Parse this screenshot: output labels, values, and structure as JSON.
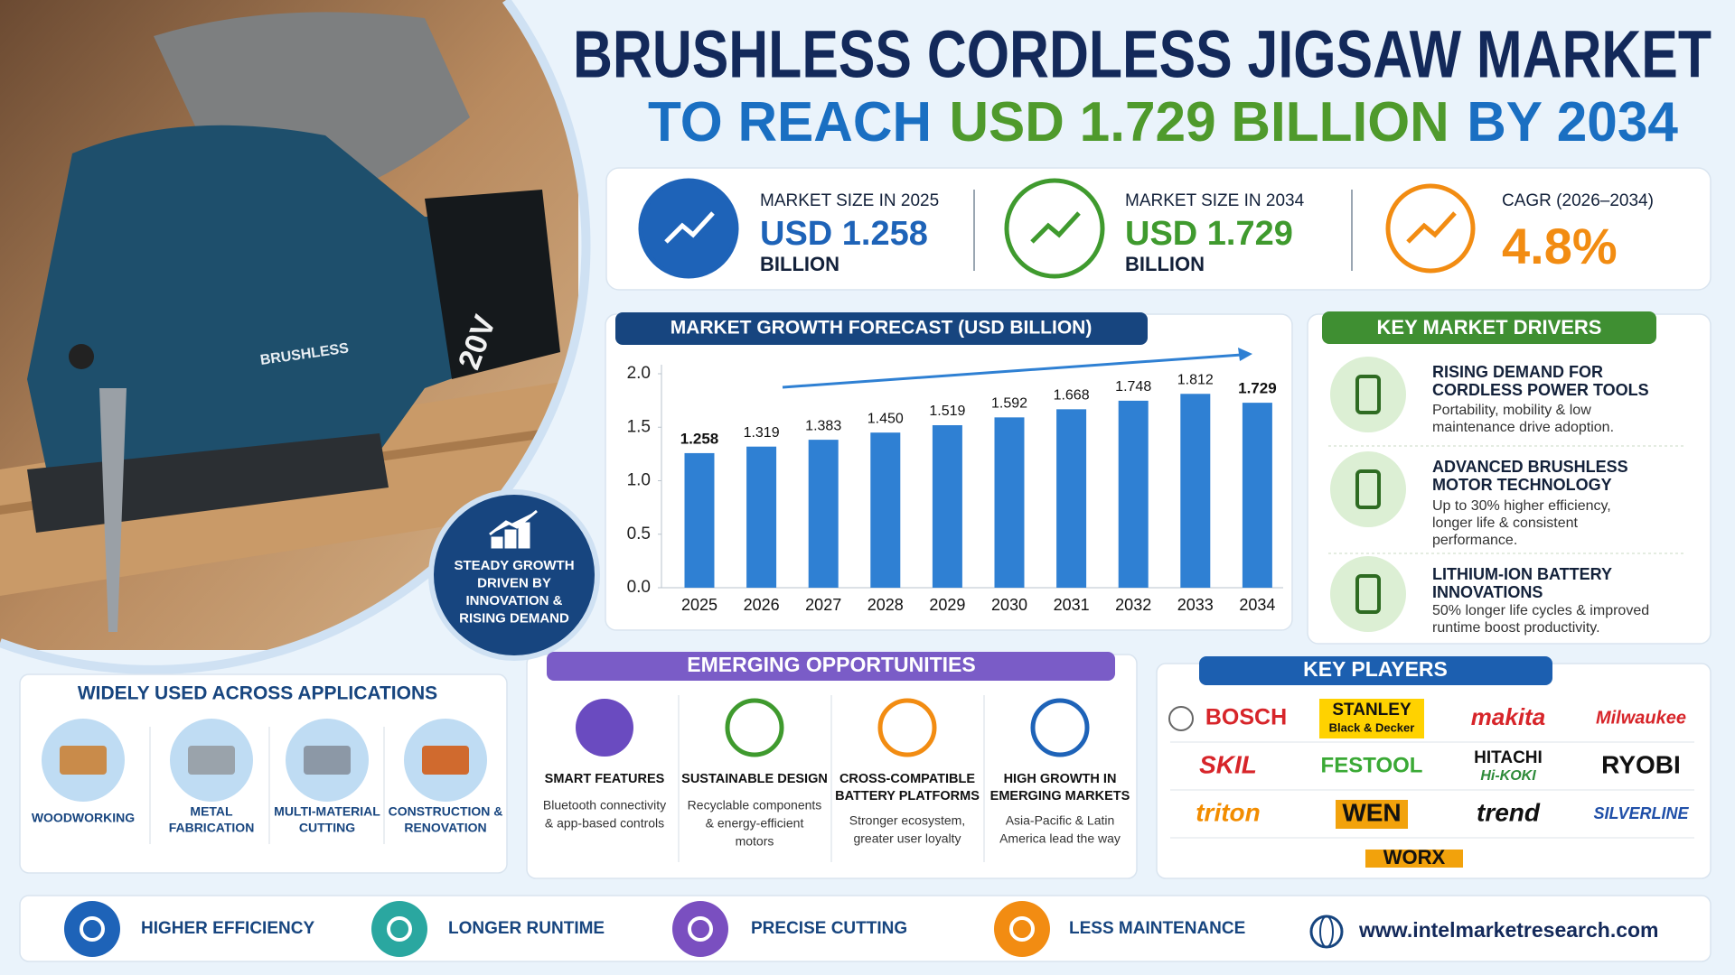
{
  "photo": {
    "labels": [
      "BRUSHLESS",
      "20V"
    ]
  },
  "header": {
    "title": "BRUSHLESS CORDLESS JIGSAW MARKET",
    "subtitle": [
      "TO REACH",
      "USD 1.729 BILLION",
      "BY 2034"
    ]
  },
  "stats": [
    {
      "label": "MARKET SIZE IN 2025",
      "value": "USD 1.258",
      "unit": "BILLION"
    },
    {
      "label": "MARKET SIZE IN 2034",
      "value": "USD 1.729",
      "unit": "BILLION"
    },
    {
      "label": "CAGR (2026–2034)",
      "value": "4.8%"
    }
  ],
  "badge": {
    "lines": [
      "STEADY GROWTH",
      "DRIVEN BY",
      "INNOVATION &",
      "RISING DEMAND"
    ]
  },
  "chart_data": {
    "type": "bar",
    "title": "MARKET GROWTH FORECAST (USD BILLION)",
    "categories": [
      "2025",
      "2026",
      "2027",
      "2028",
      "2029",
      "2030",
      "2031",
      "2032",
      "2033",
      "2034"
    ],
    "values": [
      1.258,
      1.319,
      1.383,
      1.45,
      1.519,
      1.592,
      1.668,
      1.748,
      1.812,
      1.729
    ],
    "value_labels": [
      "1.258",
      "1.319",
      "1.383",
      "1.450",
      "1.519",
      "1.592",
      "1.668",
      "1.748",
      "1.812",
      "1.729"
    ],
    "color": "#2f80d3",
    "ylim": [
      0,
      2
    ],
    "yticks": [
      {
        "value": 0,
        "label": "0.0"
      },
      0.5,
      {
        "value": 1,
        "label": "1.0"
      },
      1.5,
      {
        "value": 2,
        "label": "2.0"
      }
    ],
    "grid": false
  },
  "drivers": {
    "title": "KEY MARKET DRIVERS",
    "items": [
      {
        "heading": [
          "RISING DEMAND FOR",
          "CORDLESS POWER TOOLS"
        ],
        "text": [
          "Portability, mobility & low",
          "maintenance drive adoption."
        ]
      },
      {
        "heading": [
          "ADVANCED BRUSHLESS",
          "MOTOR TECHNOLOGY"
        ],
        "text": [
          "Up to 30% higher efficiency,",
          "longer life & consistent",
          "performance."
        ]
      },
      {
        "heading": [
          "LITHIUM-ION BATTERY",
          "INNOVATIONS"
        ],
        "text": [
          "50% longer life cycles & improved",
          "runtime boost productivity."
        ]
      }
    ]
  },
  "applications": {
    "title": "WIDELY USED ACROSS APPLICATIONS",
    "items": [
      [
        "WOODWORKING"
      ],
      [
        "METAL",
        "FABRICATION"
      ],
      [
        "MULTI-MATERIAL",
        "CUTTING"
      ],
      [
        "CONSTRUCTION &",
        "RENOVATION"
      ]
    ]
  },
  "opportunities": {
    "title": "EMERGING OPPORTUNITIES",
    "items": [
      {
        "name": [
          "SMART FEATURES"
        ],
        "text": [
          "Bluetooth connectivity",
          "& app-based controls"
        ]
      },
      {
        "name": [
          "SUSTAINABLE DESIGN"
        ],
        "text": [
          "Recyclable components",
          "& energy-efficient",
          "motors"
        ]
      },
      {
        "name": [
          "CROSS-COMPATIBLE",
          "BATTERY PLATFORMS"
        ],
        "text": [
          "Stronger ecosystem,",
          "greater user loyalty"
        ]
      },
      {
        "name": [
          "HIGH GROWTH IN",
          "EMERGING MARKETS"
        ],
        "text": [
          "Asia-Pacific & Latin",
          "America lead the way"
        ]
      }
    ]
  },
  "players": {
    "title": "KEY PLAYERS",
    "items": [
      {
        "name": [
          "BOSCH"
        ],
        "color": "#d7252a"
      },
      {
        "name": [
          "STANLEY",
          "Black & Decker"
        ],
        "color": "#111111"
      },
      {
        "name": [
          "makita"
        ],
        "color": "#d7252a"
      },
      {
        "name": [
          "Milwaukee"
        ],
        "color": "#d7252a"
      },
      {
        "name": [
          "SKIL"
        ],
        "color": "#d7252a"
      },
      {
        "name": [
          "FESTOOL"
        ],
        "color": "#3aa935"
      },
      {
        "name": [
          "HITACHI",
          "Hi-KOKI"
        ],
        "color": "#111111"
      },
      {
        "name": [
          "RYOBI"
        ],
        "color": "#111111"
      },
      {
        "name": [
          "triton"
        ],
        "color": "#f28c00"
      },
      {
        "name": [
          "WEN"
        ],
        "color": "#111111"
      },
      {
        "name": [
          "trend"
        ],
        "color": "#111111"
      },
      {
        "name": [
          "SILVERLINE"
        ],
        "color": "#1f4fa8"
      },
      {
        "name": [
          "WORX"
        ],
        "color": "#111111"
      }
    ]
  },
  "footer": {
    "benefits": [
      "HIGHER EFFICIENCY",
      "LONGER RUNTIME",
      "PRECISE CUTTING",
      "LESS MAINTENANCE"
    ],
    "website": "www.intelmarketresearch.com"
  }
}
